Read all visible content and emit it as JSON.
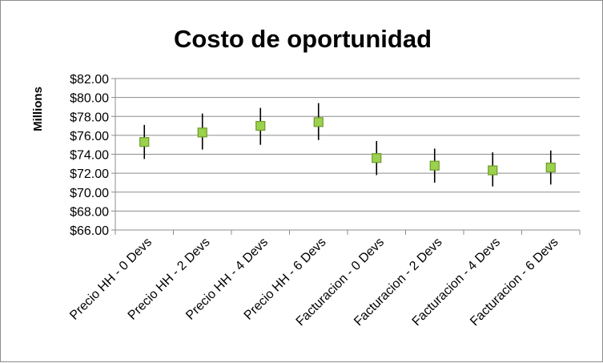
{
  "chart_data": {
    "type": "scatter",
    "title": "Costo de oportunidad",
    "xlabel": "",
    "ylabel": "Millions",
    "ylim": [
      66,
      82
    ],
    "ytick_step": 2,
    "y_tick_labels": [
      "$66.00",
      "$68.00",
      "$70.00",
      "$72.00",
      "$74.00",
      "$76.00",
      "$78.00",
      "$80.00",
      "$82.00"
    ],
    "categories": [
      "Precio HH - 0 Devs",
      "Precio HH - 2 Devs",
      "Precio HH - 4 Devs",
      "Precio HH - 6 Devs",
      "Facturacion - 0 Devs",
      "Facturacion - 2 Devs",
      "Facturacion - 4 Devs",
      "Facturacion - 6 Devs"
    ],
    "values": [
      75.3,
      76.3,
      77.0,
      77.4,
      73.6,
      72.8,
      72.3,
      72.6
    ],
    "error_low": [
      73.5,
      74.5,
      75.0,
      75.5,
      71.8,
      71.0,
      70.6,
      70.8
    ],
    "error_high": [
      77.1,
      78.3,
      78.9,
      79.4,
      75.4,
      74.6,
      74.2,
      74.4
    ],
    "grid": true,
    "legend": "none",
    "colors": {
      "marker_fill": "#9bd14c",
      "marker_stroke": "#6e9a2c",
      "error_bar": "#000000",
      "gridline": "#8c8c8c",
      "axis": "#8c8c8c"
    }
  }
}
